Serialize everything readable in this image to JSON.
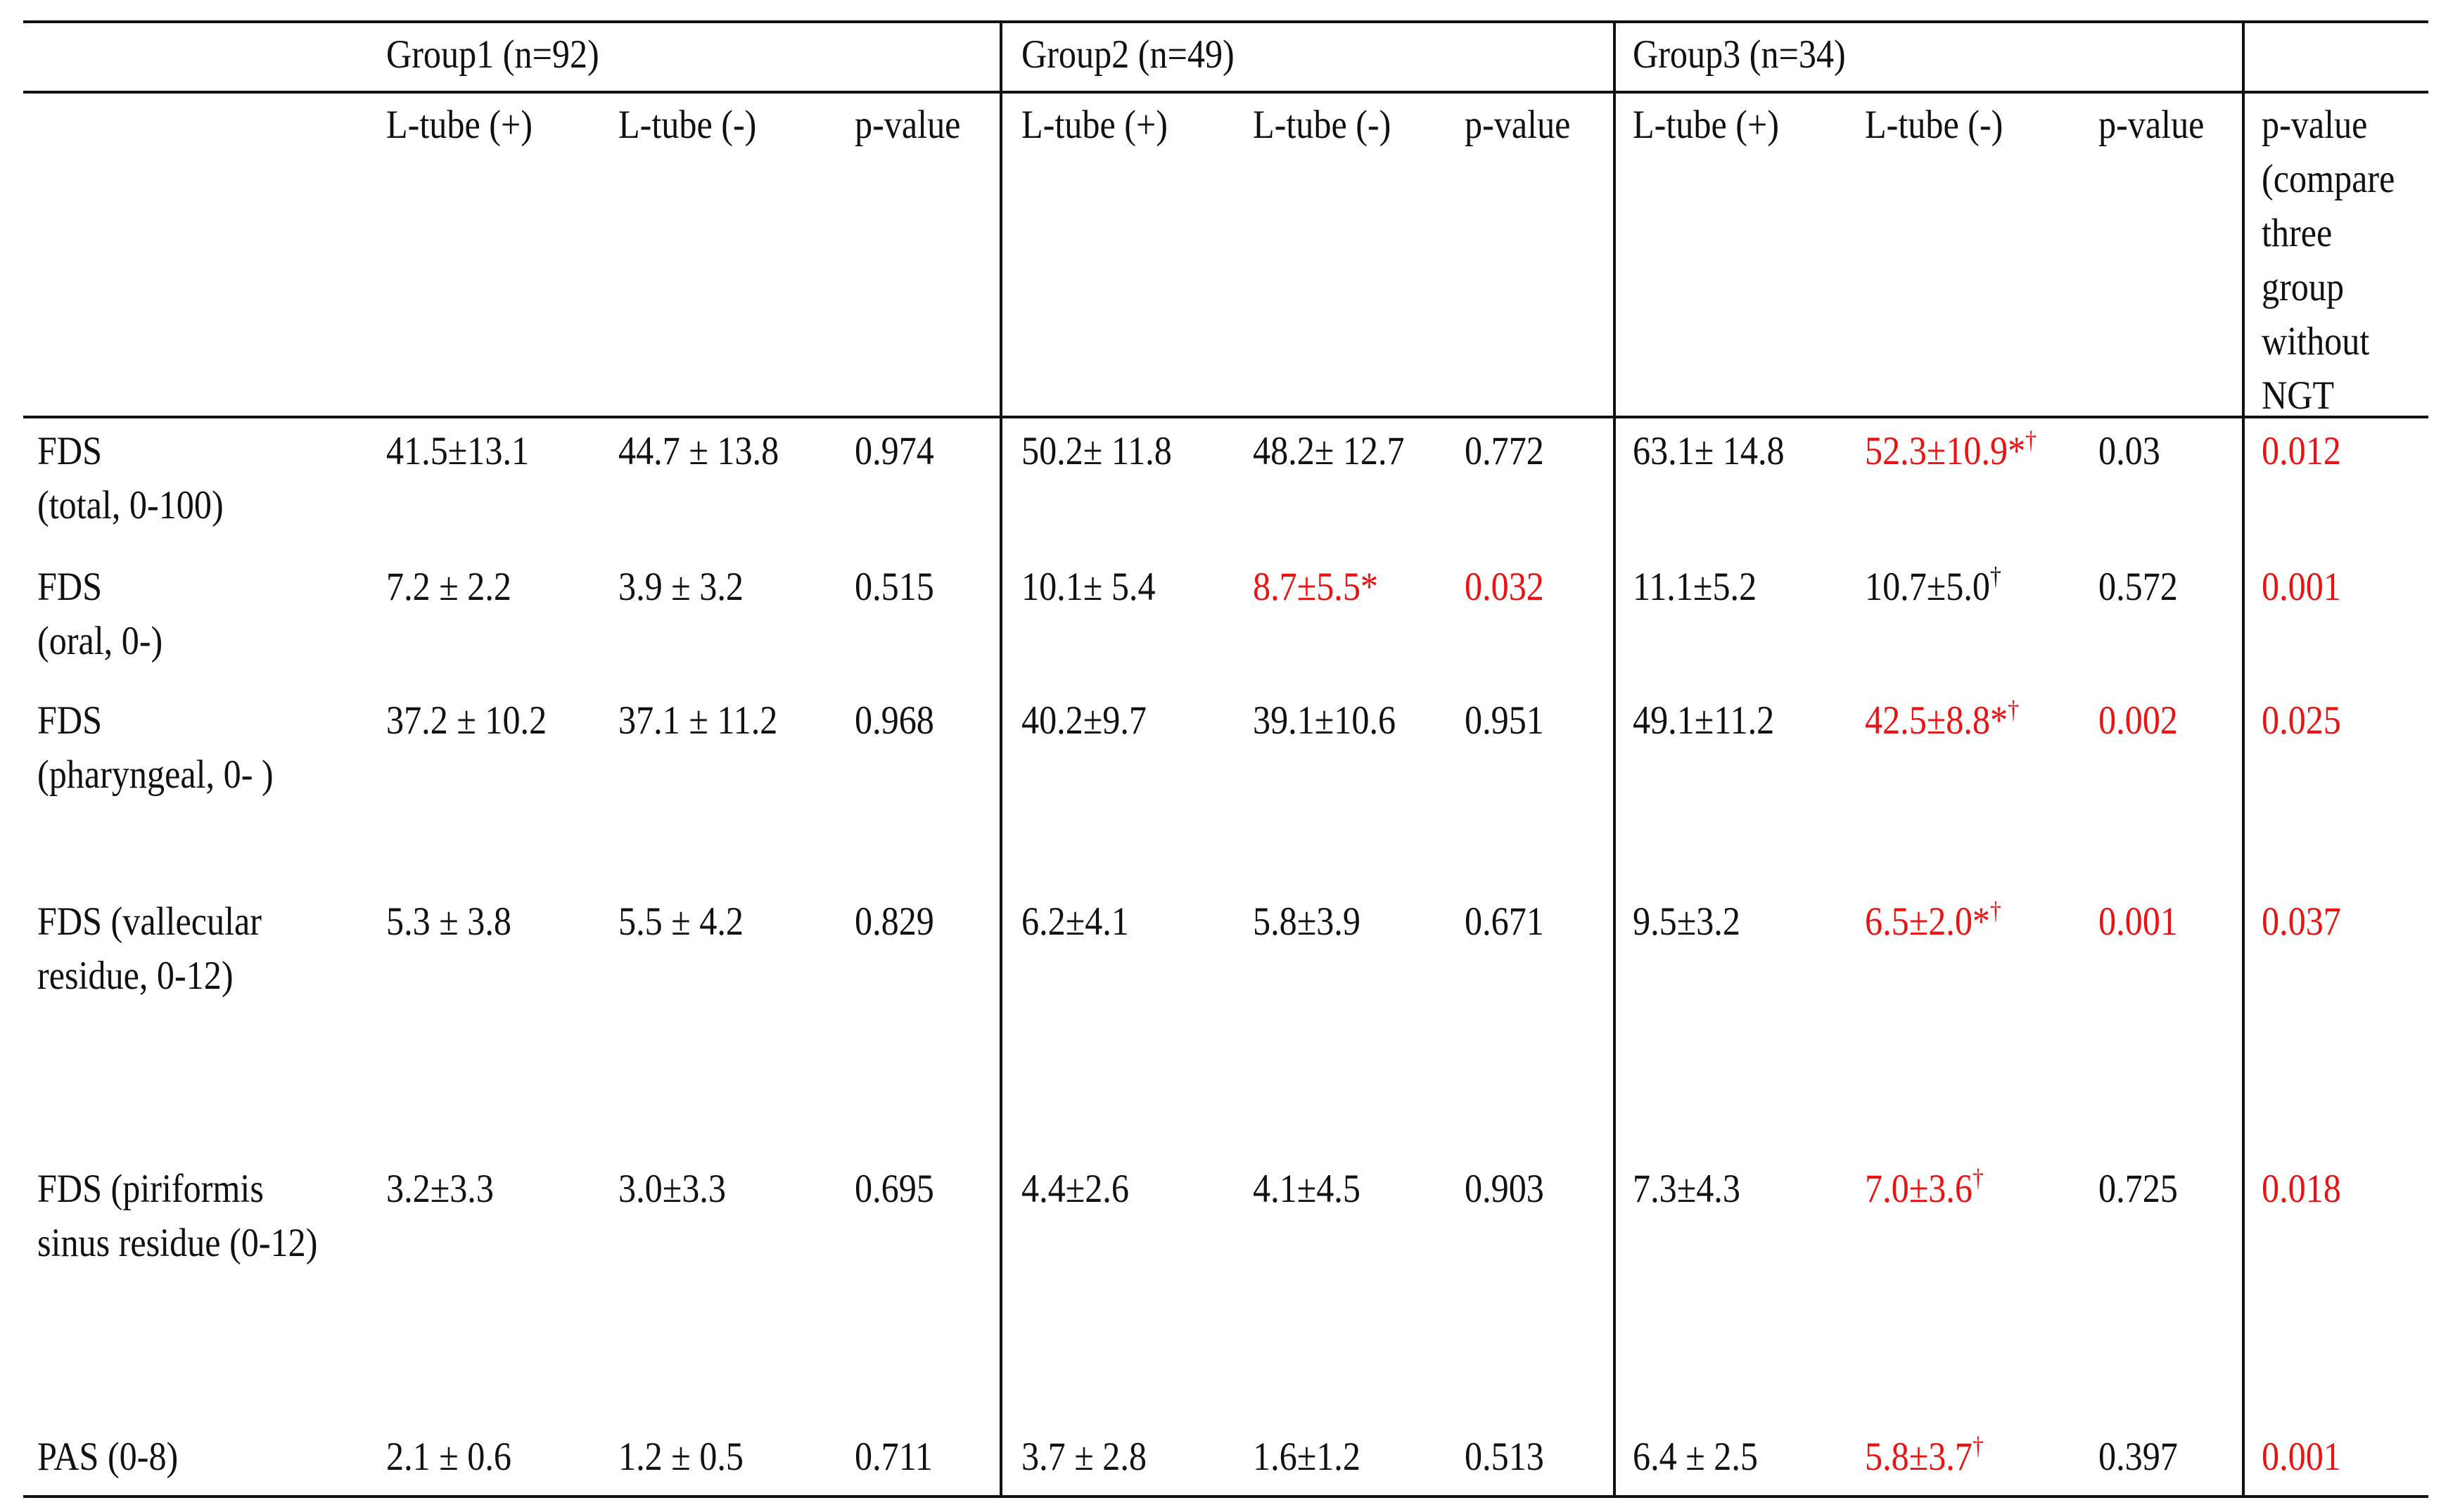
{
  "table": {
    "groups": [
      "Group1 (n=92)",
      "Group2 (n=49)",
      "Group3 (n=34)"
    ],
    "columns": [
      [
        "L-tube (+)"
      ],
      [
        "L-tube (-)"
      ],
      [
        "p-value"
      ],
      [
        "L-tube (+)"
      ],
      [
        "L-tube (-)"
      ],
      [
        "p-value"
      ],
      [
        "L-tube (+)"
      ],
      [
        "L-tube (-)"
      ],
      [
        "p-value"
      ],
      [
        "p-value",
        "(compare",
        "three",
        "group",
        "without",
        "NGT"
      ]
    ],
    "highlight_color": "#ee1111",
    "rows": [
      {
        "label": [
          "FDS",
          "(total, 0-100)"
        ],
        "cells": [
          {
            "text": "41.5±13.1"
          },
          {
            "text": "44.7 ± 13.8"
          },
          {
            "text": "0.974"
          },
          {
            "text": "50.2± 11.8"
          },
          {
            "text": "48.2± 12.7"
          },
          {
            "text": "0.772"
          },
          {
            "text": "63.1± 14.8"
          },
          {
            "text": "52.3±10.9*",
            "sup": "†",
            "highlight": true
          },
          {
            "text": "0.03"
          },
          {
            "text": "0.012",
            "highlight": true
          }
        ]
      },
      {
        "label": [
          "FDS",
          "(oral, 0-)"
        ],
        "cells": [
          {
            "text": "7.2 ± 2.2"
          },
          {
            "text": "3.9 ± 3.2"
          },
          {
            "text": "0.515"
          },
          {
            "text": "10.1± 5.4"
          },
          {
            "text": "8.7±5.5*",
            "highlight": true
          },
          {
            "text": "0.032",
            "highlight": true
          },
          {
            "text": "11.1±5.2"
          },
          {
            "text": "10.7±5.0",
            "sup": "†"
          },
          {
            "text": "0.572"
          },
          {
            "text": "0.001",
            "highlight": true
          }
        ]
      },
      {
        "label": [
          "FDS",
          "(pharyngeal, 0- )"
        ],
        "cells": [
          {
            "text": "37.2 ± 10.2"
          },
          {
            "text": "37.1 ± 11.2"
          },
          {
            "text": "0.968"
          },
          {
            "text": "40.2±9.7"
          },
          {
            "text": "39.1±10.6"
          },
          {
            "text": "0.951"
          },
          {
            "text": "49.1±11.2"
          },
          {
            "text": "42.5±8.8*",
            "sup": "†",
            "highlight": true
          },
          {
            "text": "0.002",
            "highlight": true
          },
          {
            "text": "0.025",
            "highlight": true
          }
        ]
      },
      {
        "label": [
          "FDS (vallecular",
          "residue, 0-12)"
        ],
        "cells": [
          {
            "text": "5.3 ± 3.8"
          },
          {
            "text": "5.5 ± 4.2"
          },
          {
            "text": "0.829"
          },
          {
            "text": "6.2±4.1"
          },
          {
            "text": "5.8±3.9"
          },
          {
            "text": "0.671"
          },
          {
            "text": "9.5±3.2"
          },
          {
            "text": "6.5±2.0*",
            "sup": "†",
            "highlight": true
          },
          {
            "text": "0.001",
            "highlight": true
          },
          {
            "text": "0.037",
            "highlight": true
          }
        ]
      },
      {
        "label": [
          "FDS (piriformis",
          "sinus residue (0-12)"
        ],
        "cells": [
          {
            "text": "3.2±3.3"
          },
          {
            "text": "3.0±3.3"
          },
          {
            "text": "0.695"
          },
          {
            "text": "4.4±2.6"
          },
          {
            "text": "4.1±4.5"
          },
          {
            "text": "0.903"
          },
          {
            "text": "7.3±4.3"
          },
          {
            "text": "7.0±3.6",
            "sup": "†",
            "highlight": true
          },
          {
            "text": "0.725"
          },
          {
            "text": "0.018",
            "highlight": true
          }
        ]
      },
      {
        "label": [
          "PAS (0-8)"
        ],
        "cells": [
          {
            "text": "2.1 ± 0.6"
          },
          {
            "text": "1.2 ± 0.5"
          },
          {
            "text": "0.711"
          },
          {
            "text": "3.7 ± 2.8"
          },
          {
            "text": "1.6±1.2"
          },
          {
            "text": "0.513"
          },
          {
            "text": "6.4 ± 2.5"
          },
          {
            "text": "5.8±3.7",
            "sup": "†",
            "highlight": true
          },
          {
            "text": "0.397"
          },
          {
            "text": "0.001",
            "highlight": true
          }
        ]
      }
    ]
  }
}
